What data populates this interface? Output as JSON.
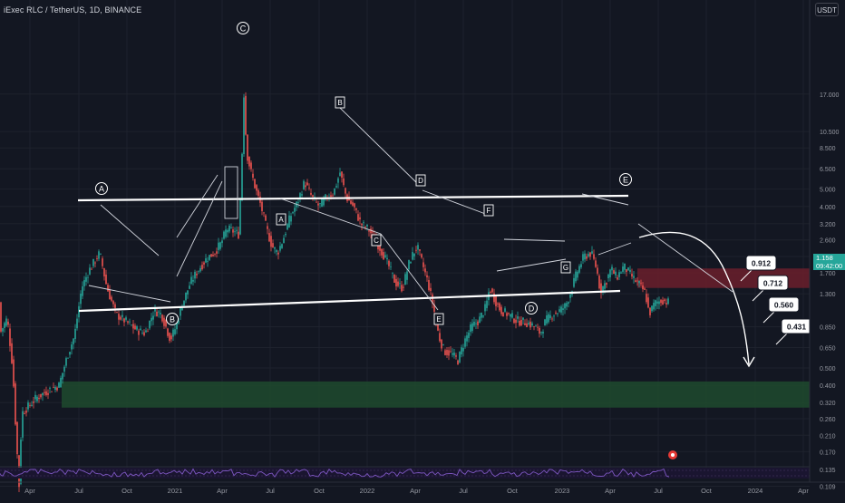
{
  "header": {
    "symbol": "iExec RLC / TetherUS, 1D, BINANCE",
    "currency": "USDT"
  },
  "last_price": {
    "price": "1.158",
    "countdown": "09:42:00"
  },
  "chart_data": {
    "type": "candlestick",
    "y_scale": "log",
    "ylim": [
      0.1,
      20
    ],
    "x_ticks": [
      "Apr",
      "Jul",
      "Oct",
      "2021",
      "Apr",
      "Jul",
      "Oct",
      "2022",
      "Apr",
      "Jul",
      "Oct",
      "2023",
      "Apr",
      "Jul",
      "Oct",
      "2024",
      "Apr"
    ],
    "y_ticks": [
      "17.000",
      "10.500",
      "8.500",
      "6.500",
      "5.000",
      "4.000",
      "3.200",
      "2.600",
      "2.100",
      "1.700",
      "1.300",
      "0.850",
      "0.650",
      "0.500",
      "0.400",
      "0.320",
      "0.260",
      "0.210",
      "0.170",
      "0.135",
      "0.109"
    ],
    "wave_labels_circled": [
      "A",
      "B",
      "C",
      "D",
      "E"
    ],
    "wave_labels_boxed": [
      "A",
      "B",
      "C",
      "D",
      "E",
      "F",
      "G"
    ],
    "targets": [
      "0.912",
      "0.712",
      "0.560",
      "0.431"
    ],
    "zones": [
      {
        "name": "resistance",
        "from": 1.4,
        "to": 1.8,
        "color": "#6b1f2b"
      },
      {
        "name": "support",
        "from": 0.3,
        "to": 0.42,
        "color": "#1e4a2e"
      }
    ],
    "colors": {
      "up": "#26a69a",
      "down": "#ef5350",
      "background": "#131722",
      "indicator": "#7e57c2"
    }
  }
}
